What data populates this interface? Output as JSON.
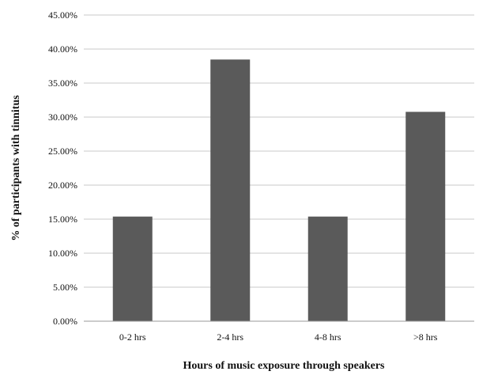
{
  "chart_data": {
    "type": "bar",
    "categories": [
      "0-2 hrs",
      "2-4 hrs",
      "4-8 hrs",
      ">8 hrs"
    ],
    "values": [
      15.38,
      38.46,
      15.38,
      30.77
    ],
    "title": "",
    "xlabel": "Hours of music exposure through speakers",
    "ylabel": "% of participants with tinnitus",
    "ylim": [
      0,
      45
    ],
    "yticks": [
      "0.00%",
      "5.00%",
      "10.00%",
      "15.00%",
      "20.00%",
      "25.00%",
      "30.00%",
      "35.00%",
      "40.00%",
      "45.00%"
    ],
    "grid": true,
    "legend": "none",
    "colors": {
      "bar": "#5a5a5a",
      "grid": "#c8c8c8",
      "axis": "#9a9a9a"
    }
  }
}
